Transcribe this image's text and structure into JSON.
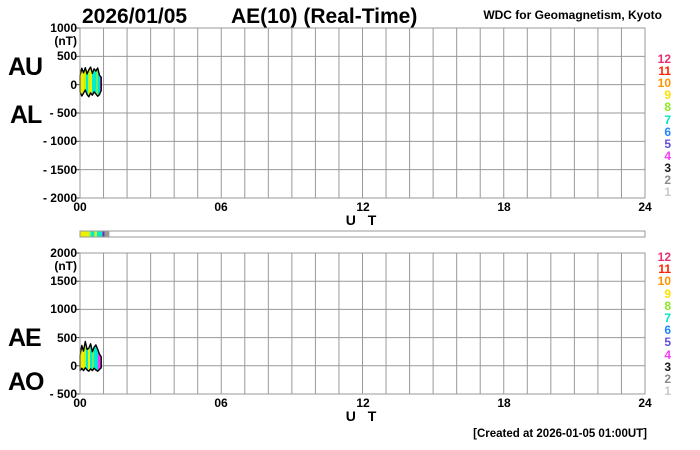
{
  "header": {
    "date": "2026/01/05",
    "title": "AE(10) (Real-Time)",
    "source": "WDC for Geomagnetism, Kyoto"
  },
  "footer": {
    "created_note": "[Created at 2026-01-05 01:00UT]"
  },
  "colors": {
    "grid": "#999999",
    "outline": "#000000",
    "tick_stub": "#444444",
    "bar_border": "#9a9a9a",
    "background": "#ffffff"
  },
  "station_legend": {
    "position": "right",
    "entries": [
      {
        "label": "12",
        "color": "#e8316e"
      },
      {
        "label": "11",
        "color": "#ff2400"
      },
      {
        "label": "10",
        "color": "#ff9400"
      },
      {
        "label": "9",
        "color": "#ffdf00"
      },
      {
        "label": "8",
        "color": "#8ce826"
      },
      {
        "label": "7",
        "color": "#00e6c8"
      },
      {
        "label": "6",
        "color": "#2186ff"
      },
      {
        "label": "5",
        "color": "#6150dc"
      },
      {
        "label": "4",
        "color": "#f53bf5"
      },
      {
        "label": "3",
        "color": "#1a1a1a"
      },
      {
        "label": "2",
        "color": "#8c8c8c"
      },
      {
        "label": "1",
        "color": "#c9c9c9"
      }
    ]
  },
  "availability_bar": {
    "range_hours": [
      0,
      24
    ],
    "segments": [
      {
        "from": 0.0,
        "to": 0.35,
        "color": "#eef000"
      },
      {
        "from": 0.35,
        "to": 0.45,
        "color": "#baf51e"
      },
      {
        "from": 0.45,
        "to": 0.62,
        "color": "#00eecd"
      },
      {
        "from": 0.62,
        "to": 0.72,
        "color": "#eef000"
      },
      {
        "from": 0.72,
        "to": 0.95,
        "color": "#00eecd"
      },
      {
        "from": 0.95,
        "to": 1.05,
        "color": "#7a2ca0"
      },
      {
        "from": 1.05,
        "to": 1.25,
        "color": "#9a9a9a"
      }
    ]
  },
  "chart_data": [
    {
      "type": "area",
      "panel": "AU-AL",
      "xlabel": "U T",
      "yunit": "(nT)",
      "xlim": [
        0,
        24
      ],
      "ylim": [
        -2000,
        1000
      ],
      "grid": {
        "x_step_hours": 1,
        "y_step_nT": 500
      },
      "xticks": [
        {
          "value": 0,
          "label": "00"
        },
        {
          "value": 6,
          "label": "06"
        },
        {
          "value": 12,
          "label": "12"
        },
        {
          "value": 18,
          "label": "18"
        },
        {
          "value": 24,
          "label": "24"
        }
      ],
      "yticks": [
        {
          "value": 1000,
          "label": "1000"
        },
        {
          "value": 500,
          "label": "500"
        },
        {
          "value": 0,
          "label": "0"
        },
        {
          "value": -500,
          "label": "- 500"
        },
        {
          "value": -1000,
          "label": "- 1000"
        },
        {
          "value": -1500,
          "label": "- 1500"
        },
        {
          "value": -2000,
          "label": "- 2000"
        }
      ],
      "x_hours": [
        0,
        0.075,
        0.15,
        0.225,
        0.3,
        0.375,
        0.45,
        0.525,
        0.6,
        0.675,
        0.75,
        0.825,
        0.9
      ],
      "series": [
        {
          "name": "AU",
          "values": [
            160,
            290,
            210,
            300,
            190,
            260,
            310,
            200,
            280,
            240,
            295,
            170,
            130
          ]
        },
        {
          "name": "AL",
          "values": [
            -130,
            -200,
            -150,
            -95,
            -175,
            -215,
            -145,
            -185,
            -125,
            -165,
            -205,
            -175,
            -105
          ]
        }
      ],
      "stripe_colors": [
        "#eef000",
        "#eef000",
        "#c9ee00",
        "#00eecd",
        "#baf51e",
        "#eef000",
        "#00eecd",
        "#00eecd",
        "#66ee66",
        "#00e2dc",
        "#f53bf5"
      ]
    },
    {
      "type": "area",
      "panel": "AE-AO",
      "xlabel": "U T",
      "yunit": "(nT)",
      "xlim": [
        0,
        24
      ],
      "ylim": [
        -500,
        2000
      ],
      "grid": {
        "x_step_hours": 1,
        "y_step_nT": 500
      },
      "xticks": [
        {
          "value": 0,
          "label": "00"
        },
        {
          "value": 6,
          "label": "06"
        },
        {
          "value": 12,
          "label": "12"
        },
        {
          "value": 18,
          "label": "18"
        },
        {
          "value": 24,
          "label": "24"
        }
      ],
      "yticks": [
        {
          "value": 2000,
          "label": "2000"
        },
        {
          "value": 1500,
          "label": "1500"
        },
        {
          "value": 1000,
          "label": "1000"
        },
        {
          "value": 500,
          "label": "500"
        },
        {
          "value": 0,
          "label": "0"
        },
        {
          "value": -500,
          "label": "- 500"
        }
      ],
      "x_hours": [
        0,
        0.075,
        0.15,
        0.225,
        0.3,
        0.375,
        0.45,
        0.525,
        0.6,
        0.675,
        0.75,
        0.825,
        0.9
      ],
      "series": [
        {
          "name": "AE",
          "values": [
            190,
            360,
            260,
            430,
            290,
            310,
            390,
            250,
            330,
            370,
            290,
            210,
            160
          ]
        },
        {
          "name": "AO",
          "values": [
            -90,
            -45,
            -85,
            -35,
            -75,
            -95,
            -55,
            -85,
            -45,
            -75,
            -95,
            -65,
            -35
          ]
        }
      ],
      "stripe_colors": [
        "#eef000",
        "#eef000",
        "#baf51e",
        "#00eecd",
        "#eef000",
        "#00eecd",
        "#66ee66",
        "#00eecd",
        "#00e2dc",
        "#f53bf5",
        "#f53bf5"
      ]
    }
  ]
}
